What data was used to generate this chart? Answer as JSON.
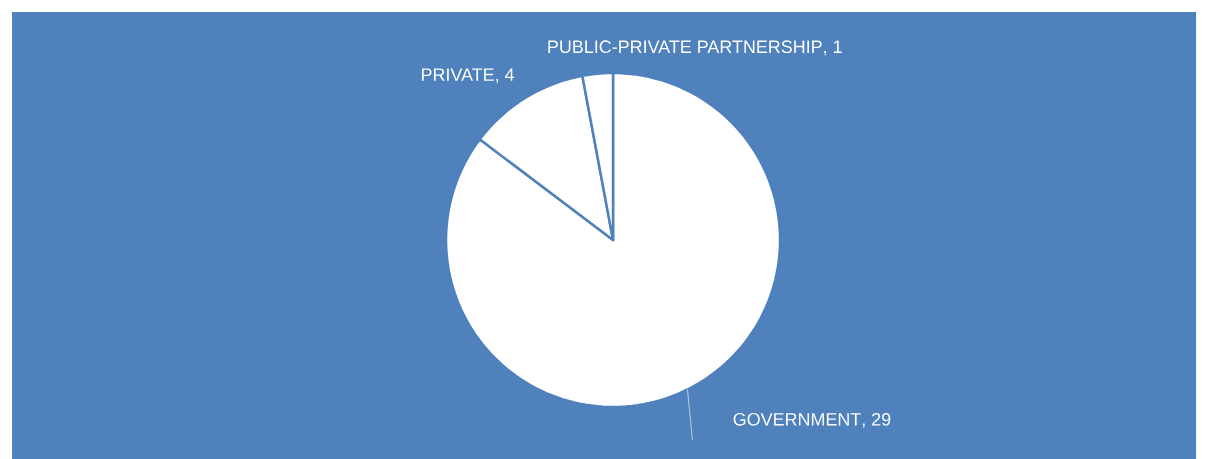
{
  "chart_data": {
    "type": "pie",
    "categories": [
      "GOVERNMENT",
      "PRIVATE",
      "PUBLIC-PRIVATE PARTNERSHIP"
    ],
    "values": [
      29,
      4,
      1
    ],
    "colors": [
      "#ffffff",
      "#ffffff",
      "#ffffff"
    ],
    "value_labels": [
      ", 29",
      ", 4",
      ", 1"
    ]
  }
}
